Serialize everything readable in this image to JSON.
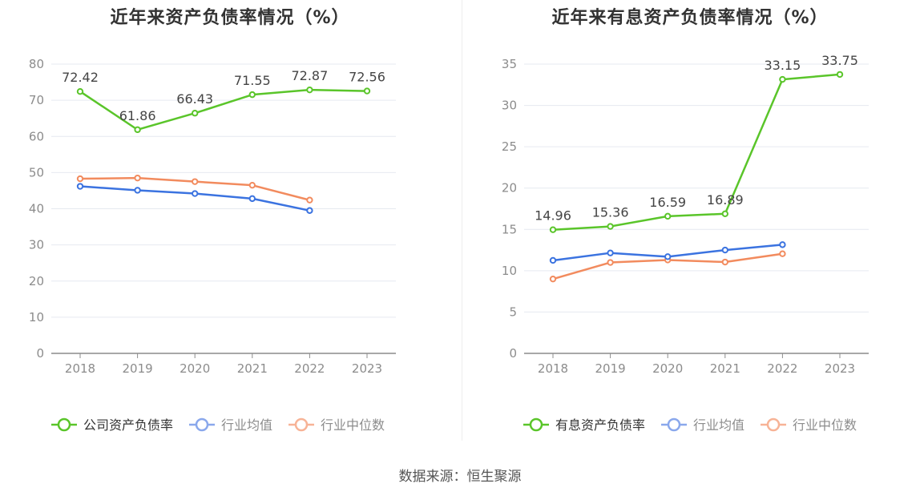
{
  "chart_data": [
    {
      "type": "line",
      "title": "近年来资产负债率情况（%）",
      "categories": [
        "2018",
        "2019",
        "2020",
        "2021",
        "2022",
        "2023"
      ],
      "ylim": [
        0,
        80
      ],
      "yticks": [
        0,
        10,
        20,
        30,
        40,
        50,
        60,
        70,
        80
      ],
      "grid": true,
      "legend_position": "bottom",
      "series": [
        {
          "name": "公司资产负债率",
          "color": "#5ac52a",
          "values": [
            72.42,
            61.86,
            66.43,
            71.55,
            72.87,
            72.56
          ],
          "labels": [
            "72.42",
            "61.86",
            "66.43",
            "71.55",
            "72.87",
            "72.56"
          ],
          "legend_active": true
        },
        {
          "name": "行业均值",
          "color": "#3b73e0",
          "legend_color": "#8aa8ec",
          "values": [
            46.2,
            45.1,
            44.2,
            42.8,
            39.5,
            null
          ],
          "legend_active": false
        },
        {
          "name": "行业中位数",
          "color": "#f28b5e",
          "legend_color": "#f7b396",
          "values": [
            48.3,
            48.5,
            47.5,
            46.5,
            42.4,
            null
          ],
          "legend_active": false
        }
      ]
    },
    {
      "type": "line",
      "title": "近年来有息资产负债率情况（%）",
      "categories": [
        "2018",
        "2019",
        "2020",
        "2021",
        "2022",
        "2023"
      ],
      "ylim": [
        0,
        35
      ],
      "yticks": [
        0,
        5,
        10,
        15,
        20,
        25,
        30,
        35
      ],
      "grid": true,
      "legend_position": "bottom",
      "series": [
        {
          "name": "有息资产负债率",
          "color": "#5ac52a",
          "values": [
            14.96,
            15.36,
            16.59,
            16.89,
            33.15,
            33.75
          ],
          "labels": [
            "14.96",
            "15.36",
            "16.59",
            "16.89",
            "33.15",
            "33.75"
          ],
          "legend_active": true
        },
        {
          "name": "行业均值",
          "color": "#3b73e0",
          "legend_color": "#8aa8ec",
          "values": [
            11.25,
            12.15,
            11.7,
            12.5,
            13.15,
            null
          ],
          "legend_active": false
        },
        {
          "name": "行业中位数",
          "color": "#f28b5e",
          "legend_color": "#f7b396",
          "values": [
            9.0,
            11.0,
            11.3,
            11.05,
            12.05,
            null
          ],
          "legend_active": false
        }
      ]
    }
  ],
  "footer": {
    "source": "数据来源：恒生聚源"
  }
}
